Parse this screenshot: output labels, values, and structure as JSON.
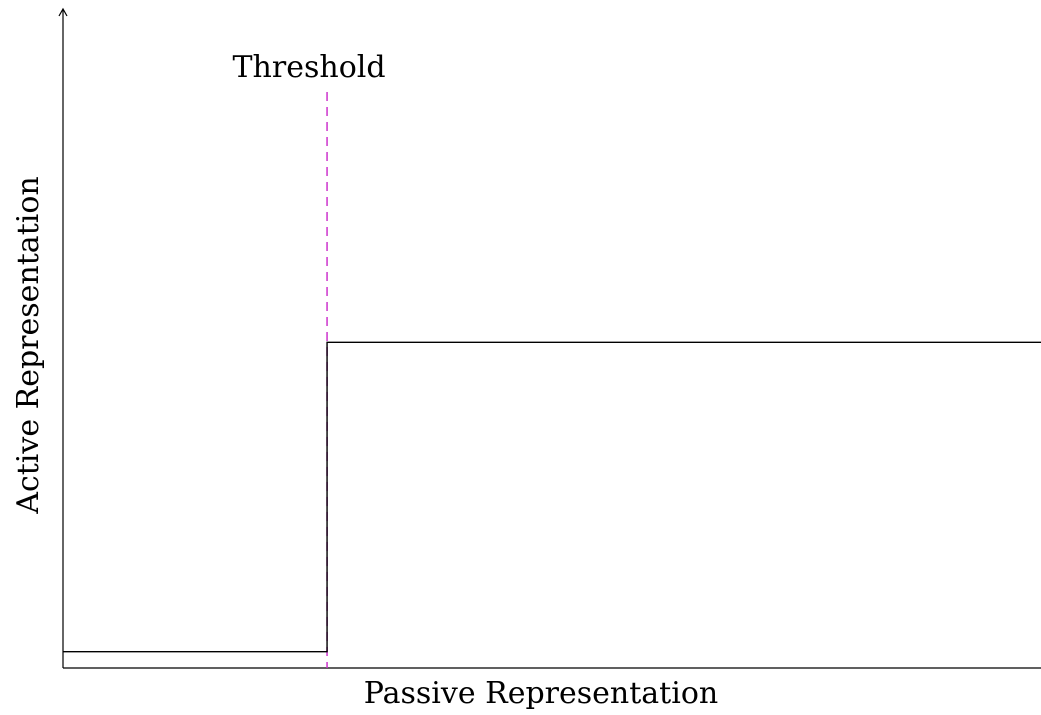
{
  "chart_data": {
    "type": "line",
    "title": "",
    "xlabel": "Passive Representation",
    "ylabel": "Active Representation",
    "x_tick_labels": [],
    "y_tick_labels": [],
    "xlim": [
      0,
      1
    ],
    "ylim": [
      0,
      1
    ],
    "grid": false,
    "legend": "none",
    "series": [
      {
        "points": [
          {
            "x": 0.0,
            "y": 0.025
          },
          {
            "x": 0.27,
            "y": 0.025
          },
          {
            "x": 0.27,
            "y": 0.5
          },
          {
            "x": 1.0,
            "y": 0.5
          }
        ],
        "color": "#000000",
        "style": "step"
      }
    ],
    "annotations": [
      {
        "label": "Threshold",
        "x": 0.27,
        "style": "dashed vertical line",
        "color": "#cc33cc"
      }
    ]
  }
}
